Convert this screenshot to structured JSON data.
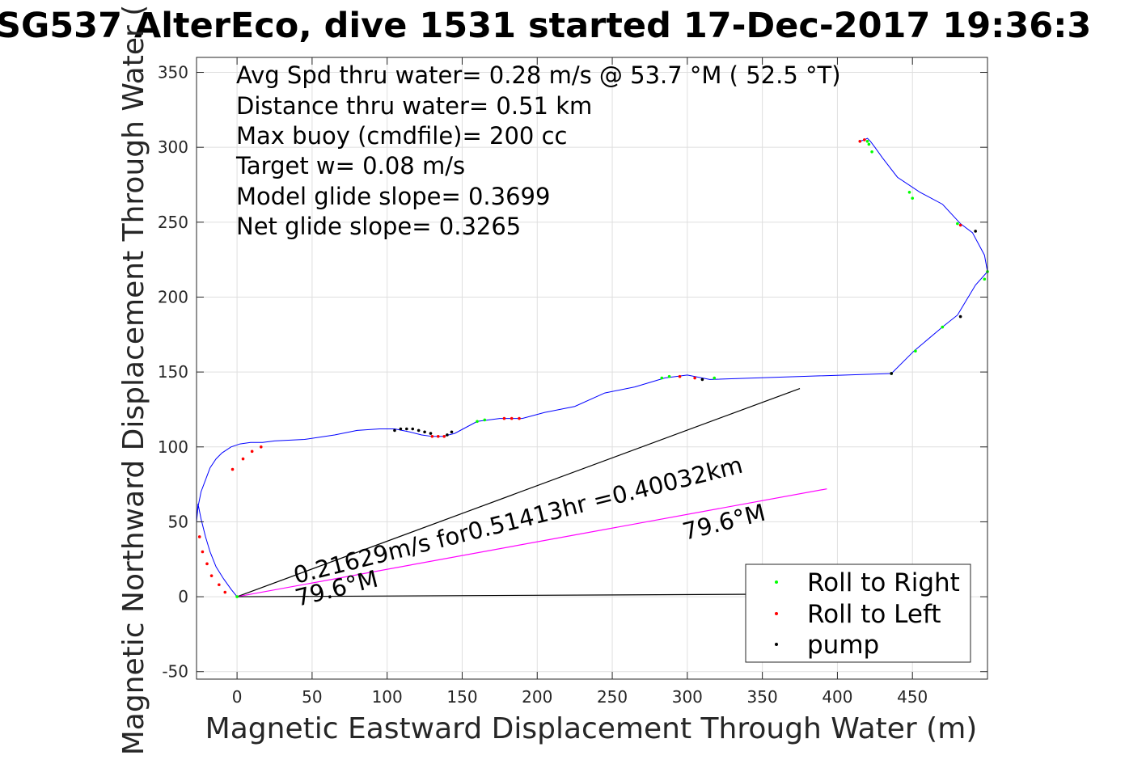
{
  "chart_data": {
    "type": "line",
    "title": "SG537 AlterEco, dive 1531 started 17-Dec-2017 19:36:3",
    "xlabel": "Magnetic Eastward Displacement Through Water (m)",
    "ylabel": "Magnetic Northward Displacement Through Water (",
    "xlim": [
      -27,
      500
    ],
    "ylim": [
      -55,
      360
    ],
    "xticks": [
      0,
      50,
      100,
      150,
      200,
      250,
      300,
      350,
      400,
      450
    ],
    "yticks": [
      -50,
      0,
      50,
      100,
      150,
      200,
      250,
      300,
      350
    ],
    "grid": true,
    "legend_position": "bottom-right",
    "annotations": [
      "Avg Spd thru water=  0.28 m/s @  53.7 °M ( 52.5 °T)",
      "Distance thru water=  0.51 km",
      "Max buoy (cmdfile)= 200 cc",
      "Target w= 0.08 m/s",
      "Model glide slope= 0.3699",
      "Net glide slope= 0.3265"
    ],
    "diagram_labels": {
      "current_text": "0.21629m/s for0.51413hr =0.40032km",
      "current_heading_start": "79.6°M",
      "current_heading_end": "79.6°M"
    },
    "legend": [
      {
        "name": "Roll to Right",
        "color": "#00ff00"
      },
      {
        "name": "Roll to Left",
        "color": "#ff0000"
      },
      {
        "name": "pump",
        "color": "#000000"
      }
    ],
    "track": {
      "name": "dive track",
      "color": "#0000ff",
      "x": [
        0,
        -4,
        -9,
        -14,
        -18,
        -21,
        -24,
        -26,
        -27,
        -26,
        -24,
        -21,
        -18,
        -14,
        -10,
        -4,
        2,
        9,
        17,
        25,
        45,
        65,
        80,
        95,
        105,
        115,
        123,
        130,
        137,
        145,
        160,
        175,
        190,
        205,
        225,
        245,
        265,
        285,
        300,
        315,
        436,
        451,
        470,
        480,
        492,
        500,
        498,
        490,
        482,
        470,
        455,
        440,
        430,
        425,
        422,
        420,
        418,
        415
      ],
      "y": [
        0,
        5,
        12,
        20,
        30,
        40,
        52,
        62,
        50,
        60,
        70,
        78,
        86,
        92,
        96,
        100,
        102,
        103,
        103,
        104,
        105,
        108,
        111,
        112,
        112,
        110,
        108,
        107,
        107,
        109,
        117,
        119,
        119,
        123,
        127,
        136,
        140,
        146,
        148,
        145,
        149,
        164,
        180,
        188,
        208,
        217,
        228,
        243,
        249,
        262,
        270,
        280,
        293,
        300,
        304,
        306,
        305,
        304
      ]
    },
    "markers": {
      "roll_right": {
        "color": "#00ff00",
        "x": [
          0,
          160,
          165,
          283,
          288,
          420,
          421,
          423,
          448,
          450,
          452,
          470,
          480,
          498,
          500,
          436,
          318
        ],
        "y": [
          0,
          117,
          118,
          146,
          147,
          304,
          302,
          297,
          270,
          266,
          164,
          180,
          249,
          212,
          217,
          149,
          146
        ]
      },
      "roll_left": {
        "color": "#ff0000",
        "x": [
          -25,
          -23,
          -20,
          -17,
          -12,
          -8,
          -3,
          4,
          10,
          16,
          130,
          134,
          138,
          178,
          183,
          188,
          295,
          305,
          415,
          418,
          482
        ],
        "y": [
          40,
          30,
          22,
          14,
          8,
          3,
          85,
          92,
          97,
          100,
          107,
          107,
          107,
          119,
          119,
          119,
          147,
          146,
          304,
          305,
          248
        ]
      },
      "pump": {
        "color": "#000000",
        "x": [
          105,
          109,
          113,
          117,
          121,
          125,
          129,
          140,
          143,
          482,
          492,
          310,
          436
        ],
        "y": [
          111,
          112,
          112,
          112,
          111,
          110,
          109,
          108,
          110,
          187,
          244,
          145,
          149
        ]
      }
    },
    "reference_lines": [
      {
        "name": "net displacement",
        "color": "#000000",
        "x": [
          0,
          375
        ],
        "y": [
          0,
          139
        ]
      },
      {
        "name": "current",
        "color": "#ff00ff",
        "x": [
          0,
          393
        ],
        "y": [
          0,
          72
        ]
      },
      {
        "name": "heading",
        "color": "#000000",
        "x": [
          0,
          420
        ],
        "y": [
          0,
          2
        ]
      }
    ]
  }
}
